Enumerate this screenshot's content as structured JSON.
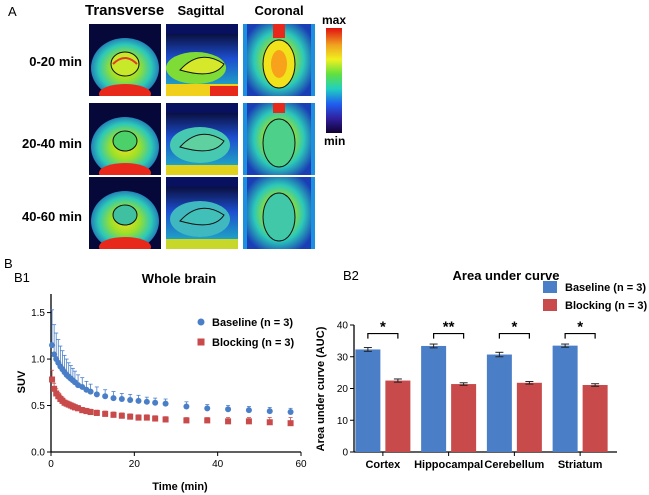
{
  "panel_a": {
    "letter": "A",
    "views": [
      "Transverse",
      "Sagittal",
      "Coronal"
    ],
    "time_rows": [
      "0-20 min",
      "20-40 min",
      "40-60 min"
    ],
    "colorbar": {
      "max_label": "max",
      "min_label": "min"
    }
  },
  "panel_b": {
    "letter": "B"
  },
  "chart_data": [
    {
      "id": "B1",
      "panel_label": "B1",
      "type": "scatter",
      "title": "Whole brain",
      "xlabel": "Time (min)",
      "ylabel": "SUV",
      "xlim": [
        0,
        60
      ],
      "ylim": [
        0,
        1.7
      ],
      "xticks": [
        0,
        20,
        40,
        60
      ],
      "yticks": [
        0.0,
        0.5,
        1.0,
        1.5
      ],
      "ytick_labels": [
        "0.0",
        "0.5",
        "1.0",
        "1.5"
      ],
      "legend_position": "top-right",
      "series": [
        {
          "name": "Baseline (n = 3)",
          "color": "#4a7fc8",
          "marker": "circle",
          "x": [
            0.25,
            0.75,
            1.25,
            1.75,
            2.25,
            2.75,
            3.25,
            3.75,
            4.25,
            4.75,
            5.25,
            5.75,
            6.5,
            7.5,
            8.5,
            9.5,
            11,
            13,
            15,
            17,
            19,
            21,
            23,
            25,
            27.5,
            32.5,
            37.5,
            42.5,
            47.5,
            52.5,
            57.5
          ],
          "y": [
            1.15,
            1.05,
            1.0,
            0.96,
            0.92,
            0.89,
            0.86,
            0.83,
            0.81,
            0.79,
            0.77,
            0.75,
            0.72,
            0.7,
            0.67,
            0.65,
            0.62,
            0.6,
            0.58,
            0.57,
            0.56,
            0.55,
            0.54,
            0.53,
            0.52,
            0.49,
            0.47,
            0.46,
            0.45,
            0.44,
            0.43
          ],
          "err": [
            0.38,
            0.32,
            0.28,
            0.25,
            0.22,
            0.2,
            0.18,
            0.17,
            0.15,
            0.14,
            0.13,
            0.12,
            0.11,
            0.1,
            0.09,
            0.08,
            0.08,
            0.07,
            0.07,
            0.06,
            0.06,
            0.06,
            0.05,
            0.05,
            0.05,
            0.05,
            0.04,
            0.04,
            0.04,
            0.04,
            0.04
          ]
        },
        {
          "name": "Blocking (n = 3)",
          "color": "#c84a4a",
          "marker": "square",
          "x": [
            0.25,
            0.75,
            1.25,
            1.75,
            2.25,
            2.75,
            3.25,
            3.75,
            4.25,
            4.75,
            5.25,
            5.75,
            6.5,
            7.5,
            8.5,
            9.5,
            11,
            13,
            15,
            17,
            19,
            21,
            23,
            25,
            27.5,
            32.5,
            37.5,
            42.5,
            47.5,
            52.5,
            57.5
          ],
          "y": [
            0.78,
            0.68,
            0.63,
            0.6,
            0.57,
            0.55,
            0.53,
            0.52,
            0.51,
            0.5,
            0.49,
            0.48,
            0.47,
            0.45,
            0.44,
            0.43,
            0.42,
            0.41,
            0.4,
            0.39,
            0.38,
            0.37,
            0.37,
            0.36,
            0.35,
            0.34,
            0.34,
            0.33,
            0.33,
            0.32,
            0.31
          ],
          "err": [
            0.1,
            0.06,
            0.05,
            0.04,
            0.04,
            0.04,
            0.03,
            0.03,
            0.03,
            0.03,
            0.03,
            0.03,
            0.03,
            0.03,
            0.03,
            0.03,
            0.03,
            0.03,
            0.03,
            0.03,
            0.03,
            0.03,
            0.03,
            0.03,
            0.03,
            0.03,
            0.03,
            0.04,
            0.04,
            0.05,
            0.06
          ]
        }
      ]
    },
    {
      "id": "B2",
      "panel_label": "B2",
      "type": "bar",
      "title": "Area under curve",
      "xlabel": "",
      "ylabel": "Area under curve (AUC)",
      "ylim": [
        0,
        40
      ],
      "yticks": [
        0,
        10,
        20,
        30,
        40
      ],
      "legend_position": "top-right",
      "categories": [
        "Cortex",
        "Hippocampal",
        "Cerebellum",
        "Striatum"
      ],
      "significance": [
        "*",
        "**",
        "*",
        "*"
      ],
      "series": [
        {
          "name": "Baseline (n = 3)",
          "color": "#4a7fc8",
          "values": [
            32.3,
            33.4,
            30.7,
            33.5
          ],
          "err": [
            0.6,
            0.6,
            0.7,
            0.5
          ]
        },
        {
          "name": "Blocking (n = 3)",
          "color": "#c84a4a",
          "values": [
            22.5,
            21.4,
            21.8,
            21.1
          ],
          "err": [
            0.5,
            0.4,
            0.4,
            0.4
          ]
        }
      ]
    }
  ]
}
